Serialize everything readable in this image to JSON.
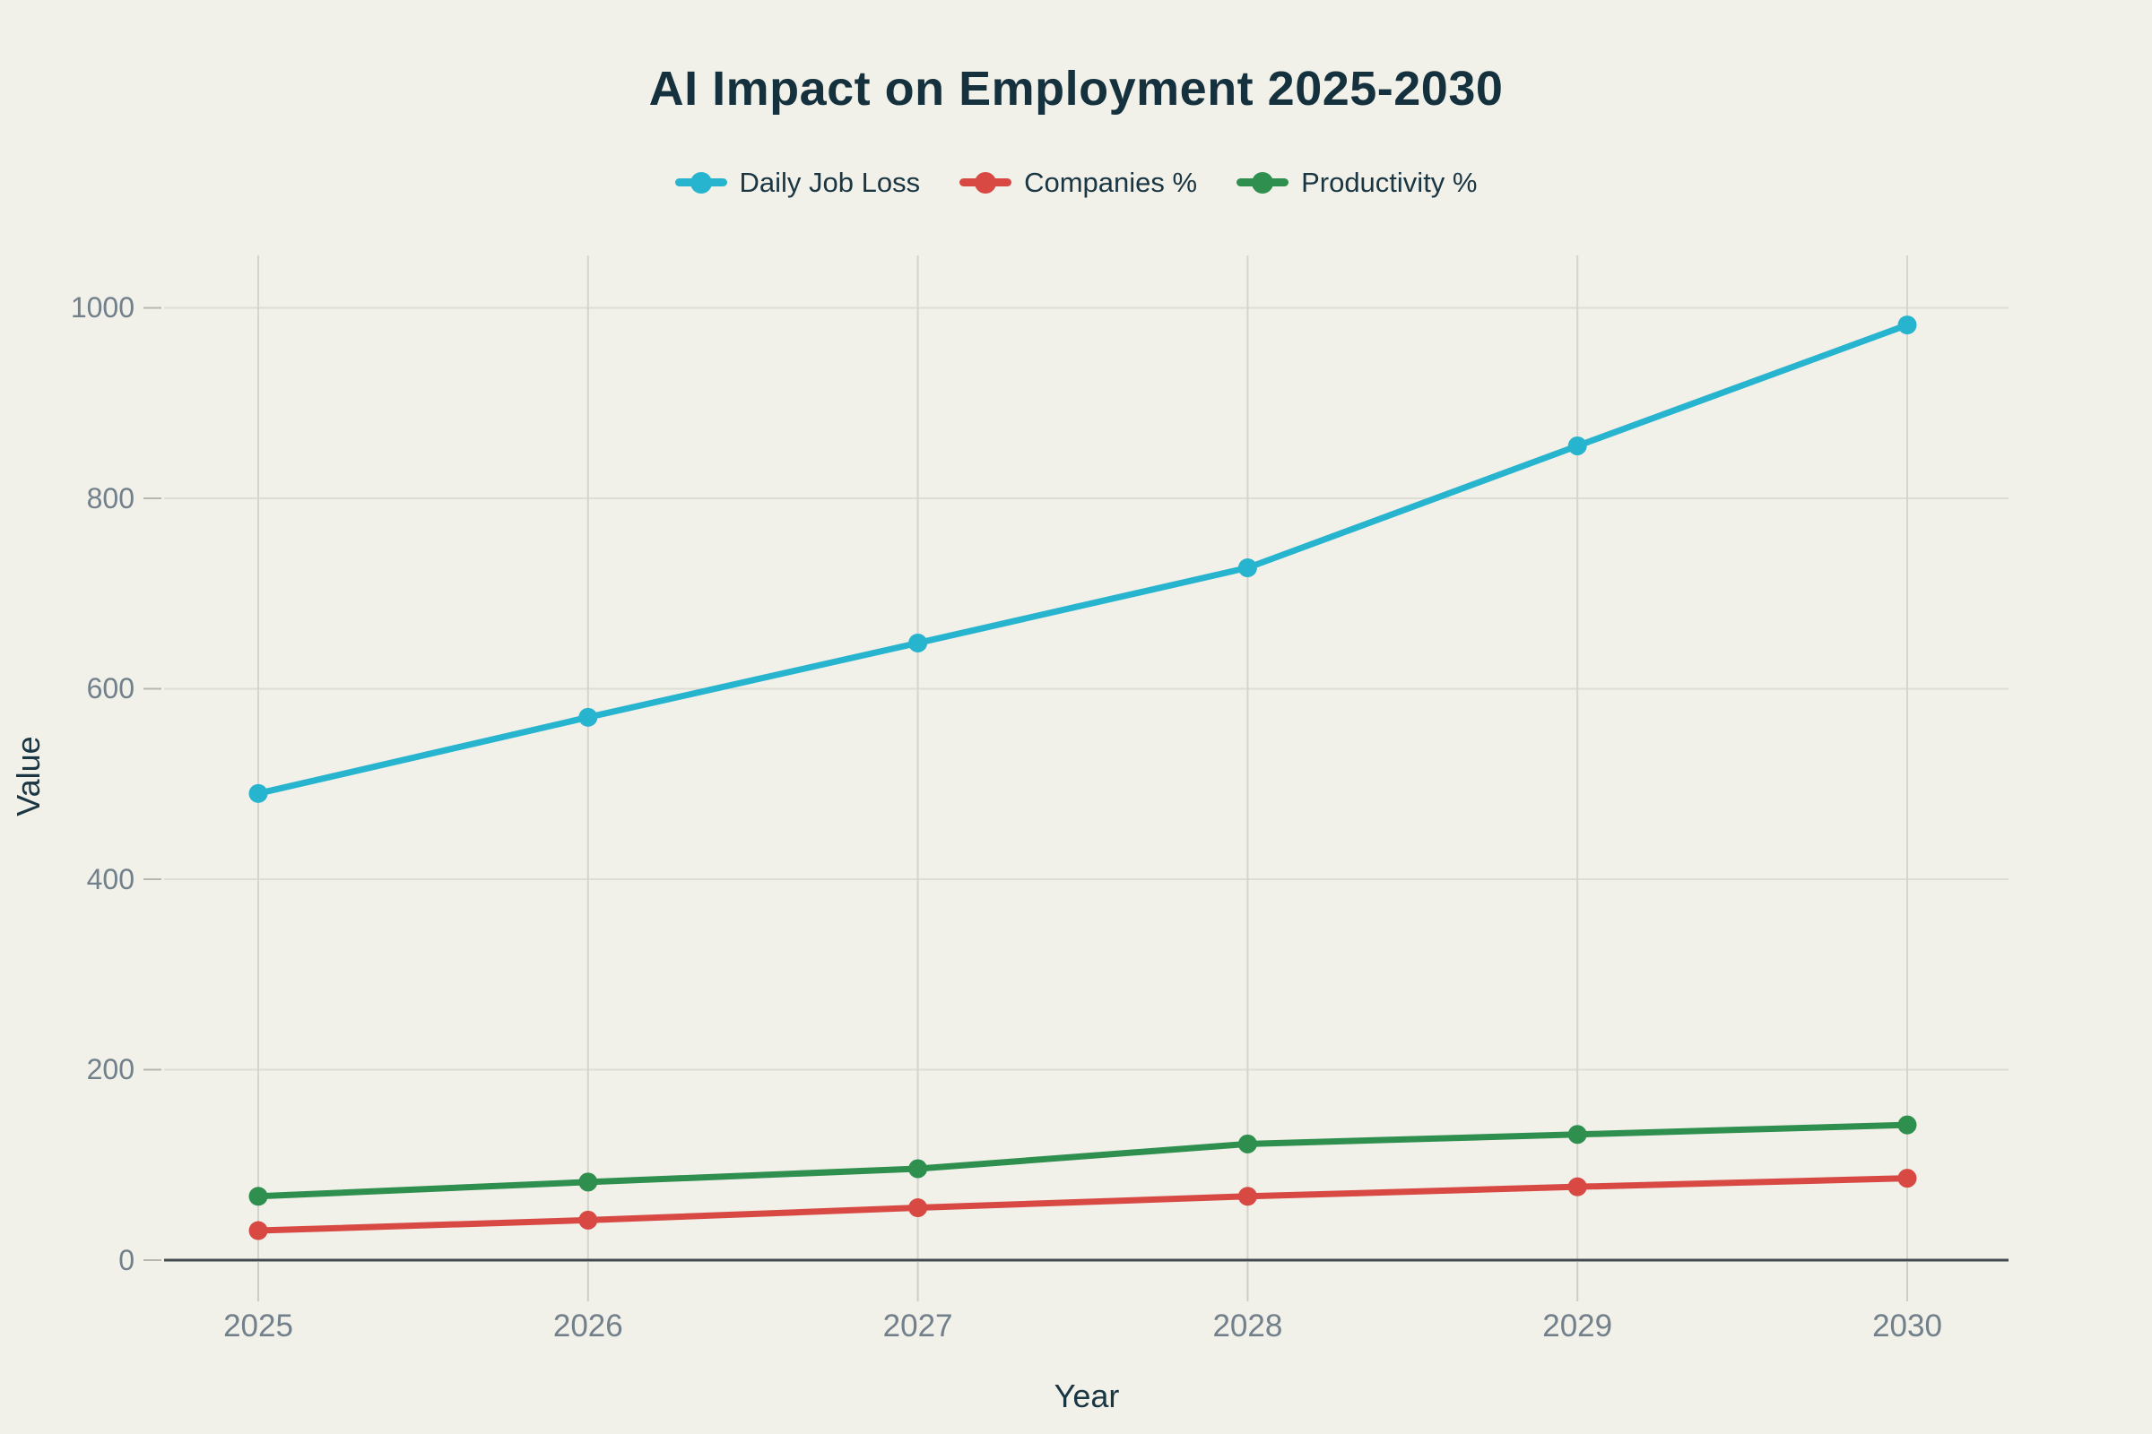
{
  "chart_data": {
    "type": "line",
    "title": "AI Impact on Employment 2025-2030",
    "xlabel": "Year",
    "ylabel": "Value",
    "categories": [
      "2025",
      "2026",
      "2027",
      "2028",
      "2029",
      "2030"
    ],
    "series": [
      {
        "name": "Daily Job Loss",
        "color": "#27b4cf",
        "values": [
          490,
          570,
          648,
          727,
          855,
          982
        ]
      },
      {
        "name": "Companies %",
        "color": "#d84944",
        "values": [
          31,
          42,
          55,
          67,
          77,
          86
        ]
      },
      {
        "name": "Productivity %",
        "color": "#2e8f4e",
        "values": [
          67,
          82,
          96,
          122,
          132,
          142
        ]
      }
    ],
    "yticks": [
      0,
      200,
      400,
      600,
      800,
      1000
    ],
    "ylim": [
      0,
      1055
    ],
    "grid": true,
    "legend_position": "top",
    "colors": {
      "background": "#f1f0e9",
      "title_text": "#14313d",
      "axis_title_text": "#1a3643",
      "tick_label_text": "#71808a",
      "gridline": "#dedcd4",
      "zero_axis": "#414a4f"
    }
  }
}
